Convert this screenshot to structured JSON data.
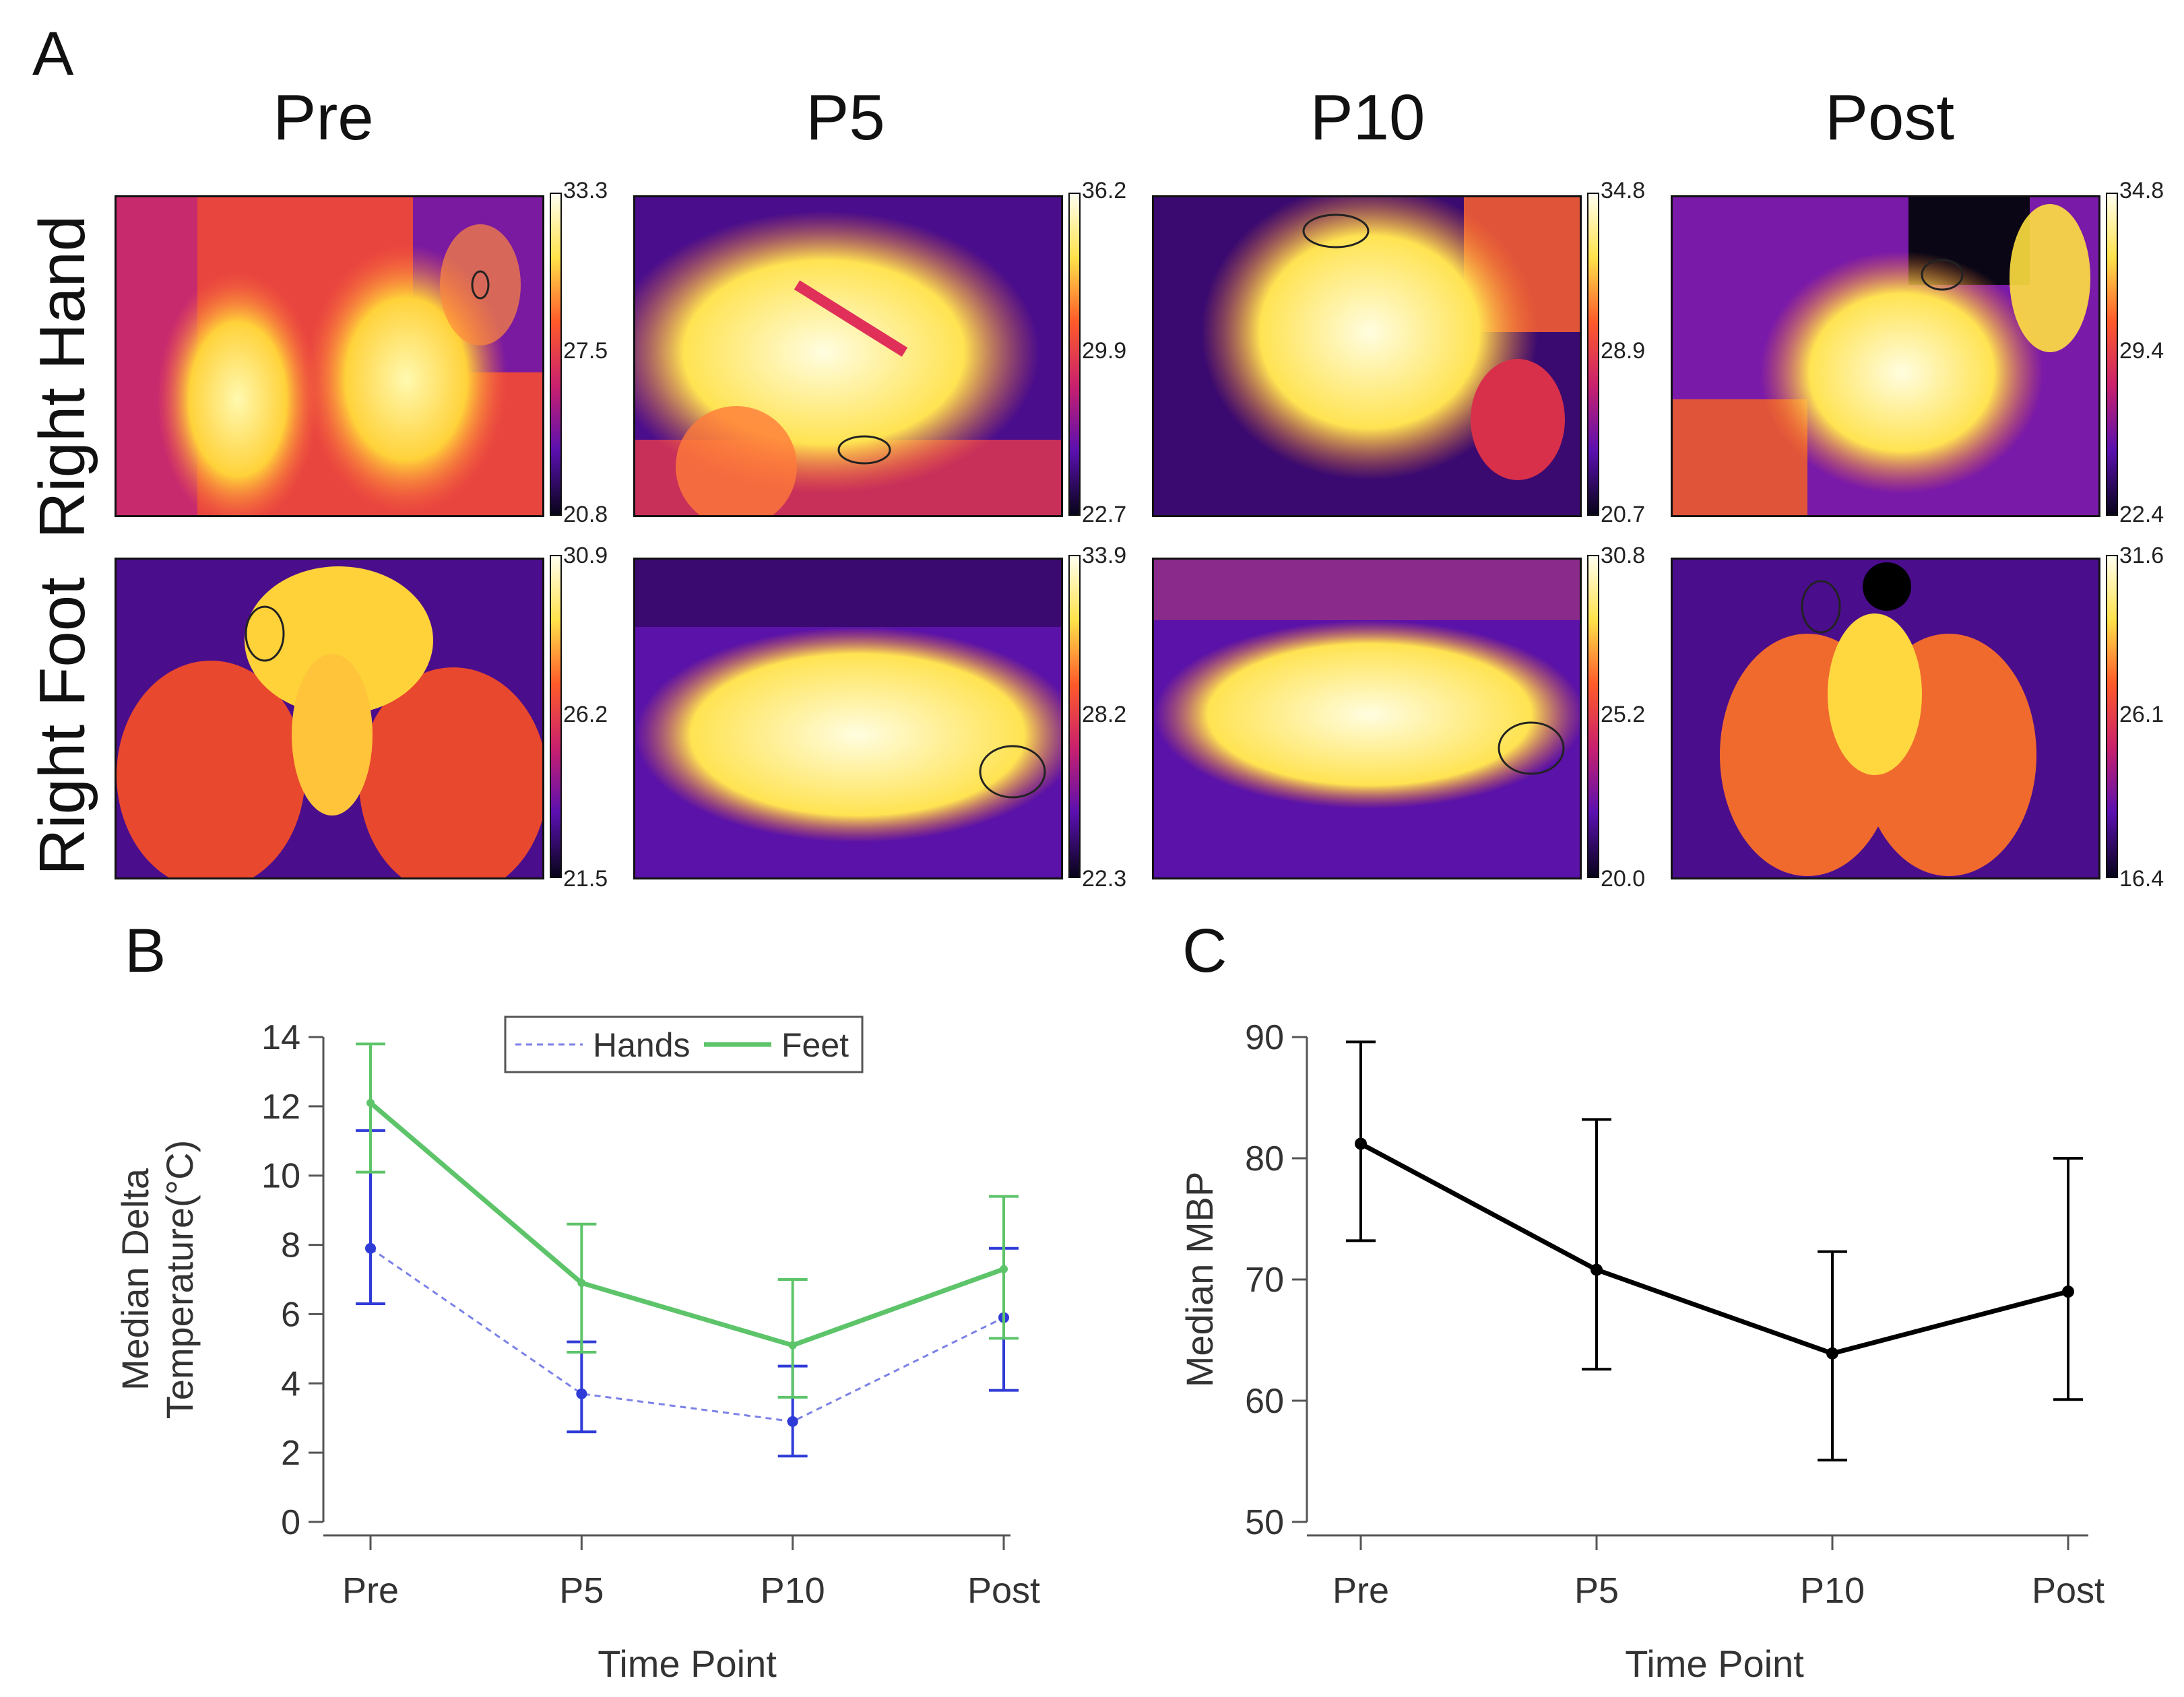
{
  "figure": {
    "panel_a_letter": "A",
    "panel_b_letter": "B",
    "panel_c_letter": "C",
    "columns": [
      "Pre",
      "P5",
      "P10",
      "Post"
    ],
    "rows": [
      "Right Hand",
      "Right Foot"
    ],
    "thermal_scales": {
      "hand": [
        {
          "max": "33.3",
          "mid": "27.5",
          "min": "20.8"
        },
        {
          "max": "36.2",
          "mid": "29.9",
          "min": "22.7"
        },
        {
          "max": "34.8",
          "mid": "28.9",
          "min": "20.7"
        },
        {
          "max": "34.8",
          "mid": "29.4",
          "min": "22.4"
        }
      ],
      "foot": [
        {
          "max": "30.9",
          "mid": "26.2",
          "min": "21.5"
        },
        {
          "max": "33.9",
          "mid": "28.2",
          "min": "22.3"
        },
        {
          "max": "30.8",
          "mid": "25.2",
          "min": "20.0"
        },
        {
          "max": "31.6",
          "mid": "26.1",
          "min": "16.4"
        }
      ]
    },
    "colors": {
      "hands": "#2f3bd6",
      "hands_dash": "#7b82e6",
      "feet": "#5dc46a",
      "mbp": "#000000"
    }
  },
  "chart_data": [
    {
      "type": "line",
      "title": "",
      "xlabel": "Time Point",
      "ylabel_line1": "Median Delta",
      "ylabel_line2": "Temperature(°C)",
      "categories": [
        "Pre",
        "P5",
        "P10",
        "Post"
      ],
      "ylim": [
        0,
        14
      ],
      "yticks": [
        "0",
        "2",
        "4",
        "6",
        "8",
        "10",
        "12",
        "14"
      ],
      "legend": {
        "placement": "top-center",
        "entries": [
          "Hands",
          "Feet"
        ]
      },
      "series": [
        {
          "name": "Hands",
          "values": [
            7.9,
            3.7,
            2.9,
            5.9
          ],
          "err_low": [
            6.3,
            2.6,
            1.9,
            3.8
          ],
          "err_high": [
            11.3,
            5.2,
            4.5,
            7.9
          ]
        },
        {
          "name": "Feet",
          "values": [
            12.1,
            6.9,
            5.1,
            7.3
          ],
          "err_low": [
            10.1,
            4.9,
            3.6,
            5.3
          ],
          "err_high": [
            13.8,
            8.6,
            7.0,
            9.4
          ]
        }
      ]
    },
    {
      "type": "line",
      "title": "",
      "xlabel": "Time Point",
      "ylabel": "Median MBP",
      "categories": [
        "Pre",
        "P5",
        "P10",
        "Post"
      ],
      "ylim": [
        50,
        90
      ],
      "yticks": [
        "50",
        "60",
        "70",
        "80",
        "90"
      ],
      "series": [
        {
          "name": "MBP",
          "values": [
            81.2,
            70.8,
            63.9,
            69.0
          ],
          "err_low": [
            73.2,
            62.6,
            55.1,
            60.1
          ],
          "err_high": [
            89.6,
            83.2,
            72.3,
            80.0
          ]
        }
      ]
    }
  ]
}
